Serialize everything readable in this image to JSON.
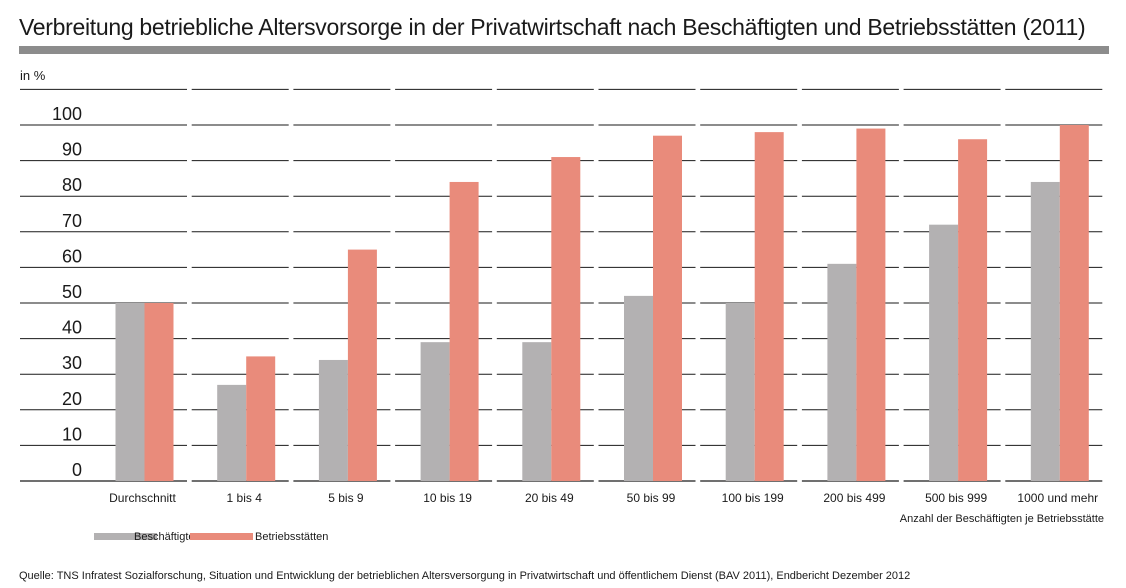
{
  "title": "Verbreitung betriebliche Altersvorsorge in der Privatwirtschaft nach Beschäftigten und Betriebsstätten (2011)",
  "source": "Quelle: TNS Infratest Sozialforschung, Situation und Entwicklung der betrieblichen Altersversorgung in Privatwirtschaft und öffentlichem Dienst (BAV 2011), Endbericht Dezember 2012",
  "chart_data": {
    "type": "bar",
    "title": "Verbreitung betriebliche Altersvorsorge in der Privatwirtschaft nach Beschäftigten und Betriebsstätten (2011)",
    "ylabel": "in %",
    "xlabel": "Anzahl der Beschäftigten je Betriebsstätte",
    "ylim": [
      0,
      100
    ],
    "yticks": [
      "0",
      "10",
      "20",
      "30",
      "40",
      "50",
      "60",
      "70",
      "80",
      "90",
      "100"
    ],
    "grid": true,
    "legend_position": "bottom-left",
    "categories": [
      "Durchschnitt",
      "1 bis 4",
      "5 bis 9",
      "10 bis 19",
      "20 bis 49",
      "50 bis 99",
      "100 bis 199",
      "200 bis 499",
      "500 bis 999",
      "1000 und mehr"
    ],
    "series": [
      {
        "name": "Beschäftigte",
        "color": "#b3b1b2",
        "values": [
          50,
          27,
          34,
          39,
          39,
          52,
          50,
          61,
          72,
          84
        ]
      },
      {
        "name": "Betriebsstätten",
        "color": "#e98b7b",
        "values": [
          50,
          35,
          65,
          84,
          91,
          97,
          98,
          99,
          96,
          100
        ]
      }
    ]
  }
}
